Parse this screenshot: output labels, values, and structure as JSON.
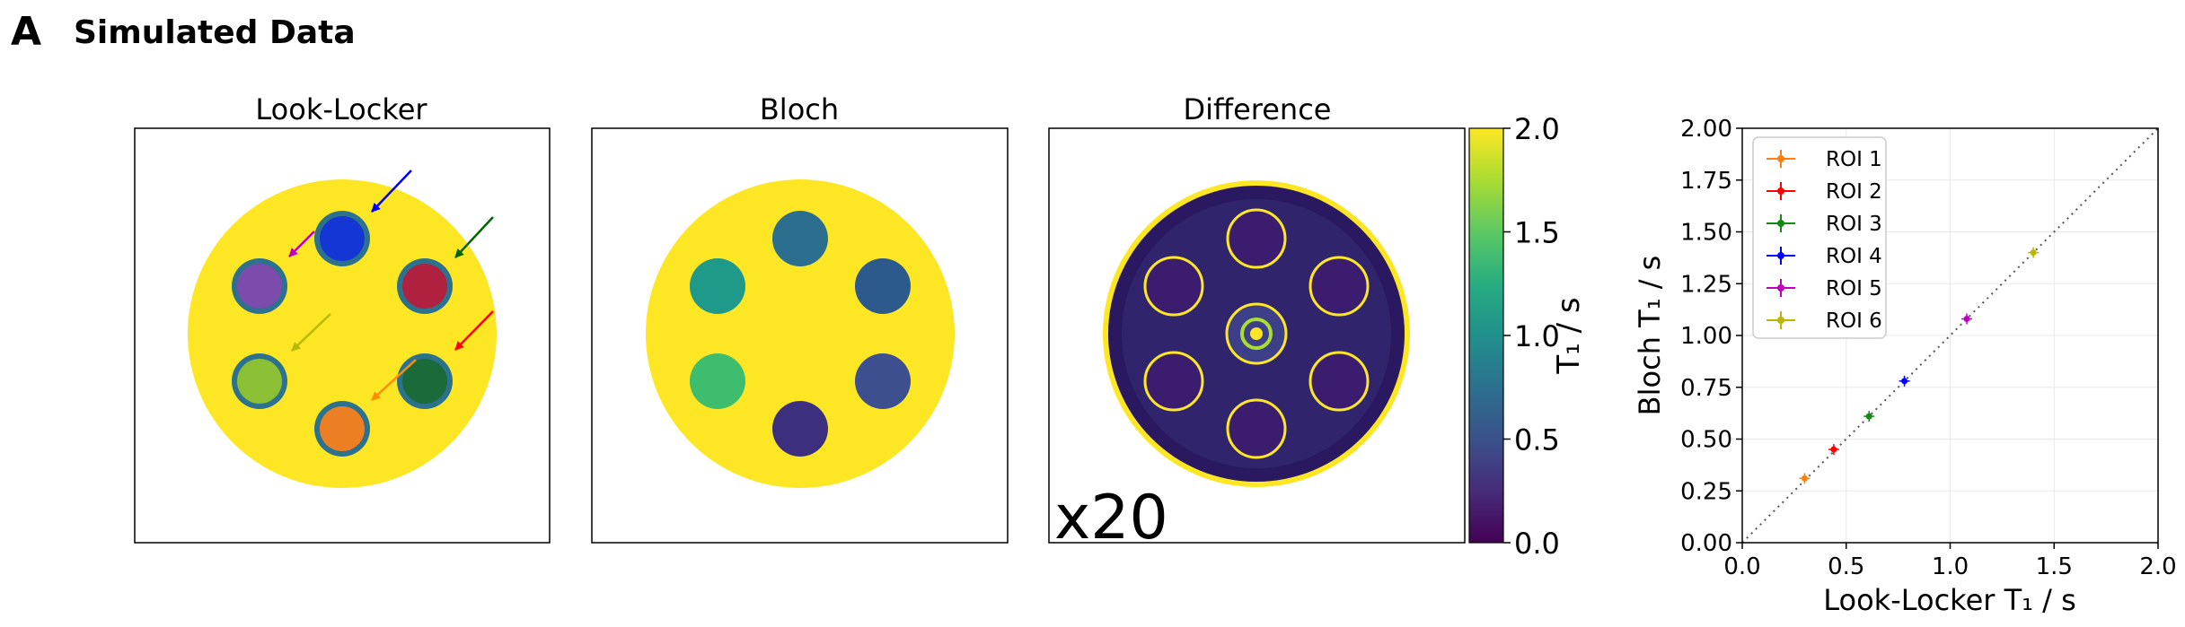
{
  "figure": {
    "panel_letter": "A",
    "title": "Simulated Data"
  },
  "images": {
    "panels": [
      {
        "title": "Look-Locker"
      },
      {
        "title": "Bloch"
      },
      {
        "title": "Difference",
        "annotation": "x20"
      }
    ],
    "colormap": "viridis",
    "colorbar": {
      "label": "T₁ / s",
      "ticks": [
        "0.0",
        "0.5",
        "1.0",
        "1.5",
        "2.0"
      ],
      "range": [
        0,
        2
      ]
    },
    "look_locker_roi_colors": [
      "#ec7f23",
      "#b0213f",
      "#1b6b3a",
      "#1436d4",
      "#7c4cac",
      "#8bbf34"
    ],
    "look_locker_arrow_colors": [
      "#ff8c00",
      "#ff0000",
      "#006400",
      "#0000ff",
      "#c000c0",
      "#b8b800"
    ],
    "bloch_vial_colors": [
      "#3c2f7d",
      "#3d4f8f",
      "#2c5a8d",
      "#2b6e8e",
      "#1f9a8a",
      "#3fbd6f"
    ],
    "background_color": "#fde725",
    "background_dark": "#440154"
  },
  "chart_data": {
    "type": "scatter",
    "xlabel": "Look-Locker T₁ / s",
    "ylabel": "Bloch T₁ / s",
    "xlim": [
      0,
      2
    ],
    "ylim": [
      0,
      2
    ],
    "xticks": [
      "0.0",
      "0.5",
      "1.0",
      "1.5",
      "2.0"
    ],
    "yticks": [
      "0.00",
      "0.25",
      "0.50",
      "0.75",
      "1.00",
      "1.25",
      "1.50",
      "1.75",
      "2.00"
    ],
    "grid": true,
    "legend_position": "top-left",
    "identity_line": true,
    "series": [
      {
        "name": "ROI 1",
        "color": "#ff7f0e",
        "x": 0.3,
        "y": 0.31
      },
      {
        "name": "ROI 2",
        "color": "#ff0000",
        "x": 0.44,
        "y": 0.45
      },
      {
        "name": "ROI 3",
        "color": "#138a13",
        "x": 0.61,
        "y": 0.61
      },
      {
        "name": "ROI 4",
        "color": "#0000ff",
        "x": 0.78,
        "y": 0.78
      },
      {
        "name": "ROI 5",
        "color": "#c000c0",
        "x": 1.08,
        "y": 1.08
      },
      {
        "name": "ROI 6",
        "color": "#b8b800",
        "x": 1.4,
        "y": 1.4
      }
    ]
  }
}
